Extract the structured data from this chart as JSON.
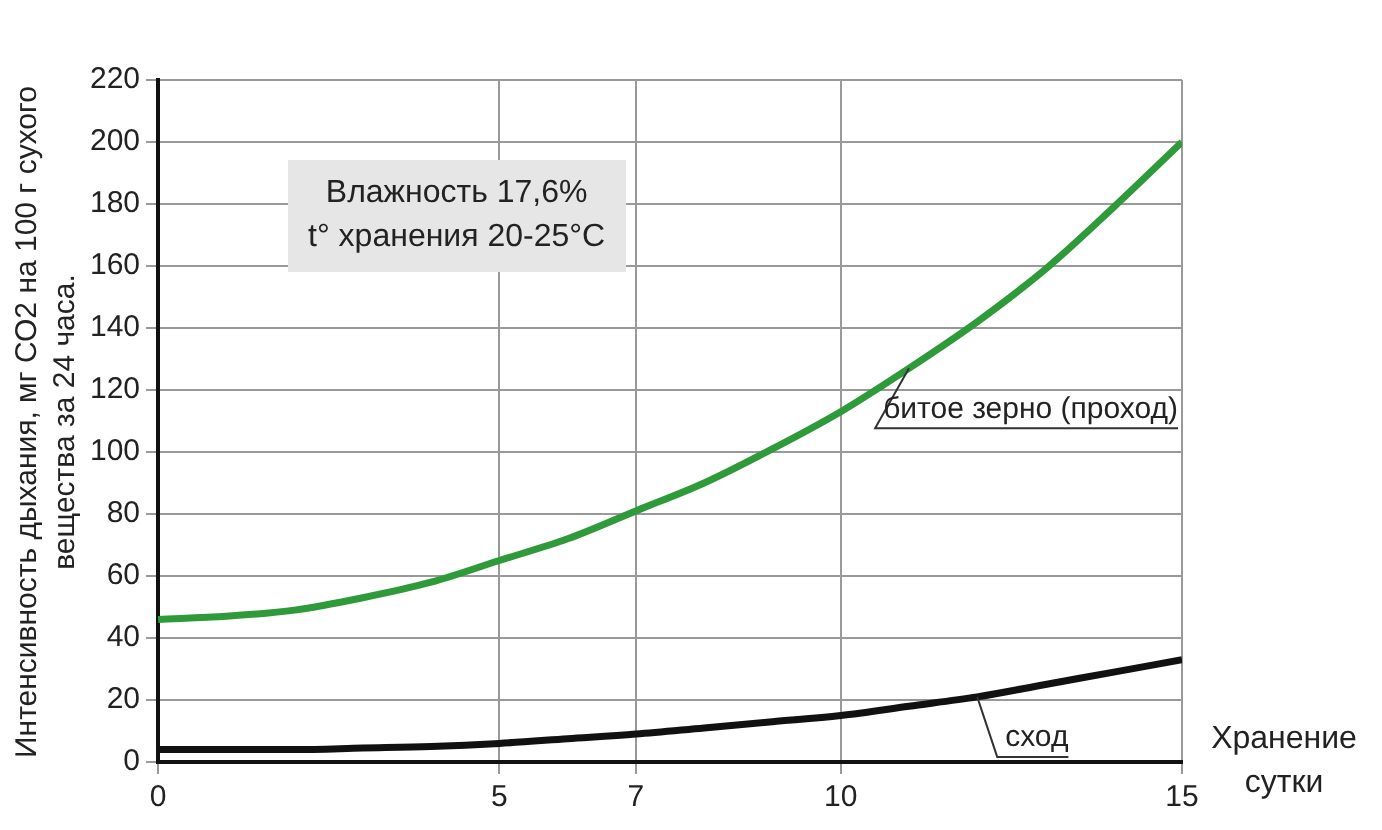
{
  "chart_data": {
    "type": "line",
    "xlabel": "Хранение сутки",
    "ylabel": "Интенсивность дыхания, мг СО2 на 100 г сухого вещества за 24 часа.",
    "annotations": [
      "Влажность 17,6%\nt° хранения 20-25°C"
    ],
    "x": [
      0,
      1,
      2,
      3,
      4,
      5,
      6,
      7,
      8,
      9,
      10,
      11,
      12,
      13,
      14,
      15
    ],
    "series": [
      {
        "name": "битое зерно (проход)",
        "color": "#2e9a3a",
        "values": [
          46,
          47,
          49,
          53,
          58,
          65,
          72,
          81,
          90,
          101,
          113,
          127,
          142,
          159,
          179,
          200
        ]
      },
      {
        "name": "сход",
        "color": "#111111",
        "values": [
          4,
          4,
          4,
          4.5,
          5,
          6,
          7.5,
          9,
          11,
          13,
          15,
          18,
          21,
          25,
          29,
          33
        ]
      }
    ],
    "xlim": [
      0,
      15
    ],
    "xticks": [
      0,
      5,
      7,
      10,
      15
    ],
    "ylim": [
      0,
      220
    ],
    "yticks": [
      0,
      20,
      40,
      60,
      80,
      100,
      120,
      140,
      160,
      180,
      200,
      220
    ],
    "grid": true,
    "legend": false,
    "marker": "none",
    "line_style": "solid"
  }
}
